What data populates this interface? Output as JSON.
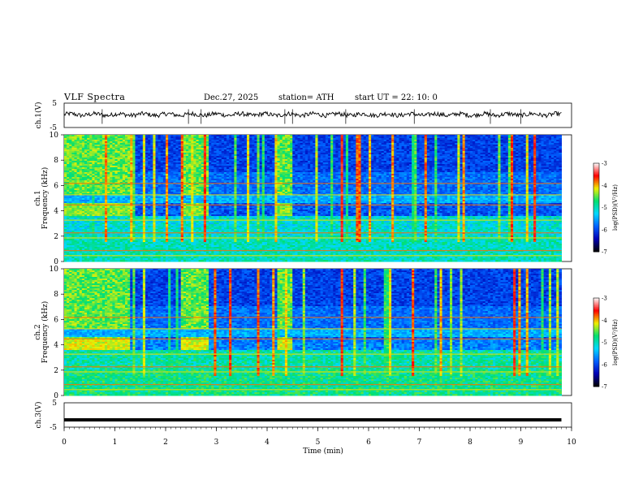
{
  "header": {
    "title": "VLF  Spectra",
    "date": "Dec.27, 2025",
    "station": "station= ATH",
    "start_ut": "start  UT  =    22: 10: 0"
  },
  "chart_data": [
    {
      "type": "line",
      "panel": "ch1-waveform",
      "ylabel": "ch.1(V)",
      "yticks": [
        "5",
        "-5"
      ],
      "ylim": [
        -5,
        5
      ],
      "xlim": [
        0,
        10
      ]
    },
    {
      "type": "heatmap",
      "panel": "ch1-spectrogram",
      "ylabel": "ch.1\nFrequency  (kHz)",
      "ylabel_line1": "ch.1",
      "ylabel_line2": "Frequency  (kHz)",
      "yticks": [
        "0",
        "2",
        "4",
        "6",
        "8",
        "10"
      ],
      "ylim": [
        0,
        10
      ],
      "xlim": [
        0,
        9.8
      ],
      "colorbar": {
        "label": "log(PSD)(V²/Hz)",
        "ticks": [
          "-3",
          "-4",
          "-5",
          "-6",
          "-7"
        ],
        "range": [
          -7,
          -3
        ],
        "colors": [
          "#000000",
          "#0000b4",
          "#0060ff",
          "#00d8ff",
          "#00e070",
          "#f0f000",
          "#ff0000",
          "#ffffff"
        ]
      }
    },
    {
      "type": "heatmap",
      "panel": "ch2-spectrogram",
      "ylabel_line1": "ch.2",
      "ylabel_line2": "Frequency  (kHz)",
      "yticks": [
        "0",
        "2",
        "4",
        "6",
        "8",
        "10"
      ],
      "ylim": [
        0,
        10
      ],
      "xlim": [
        0,
        9.8
      ],
      "colorbar": {
        "label": "log(PSD)(V²/Hz)",
        "ticks": [
          "-3",
          "-4",
          "-5",
          "-6",
          "-7"
        ],
        "range": [
          -7,
          -3
        ]
      }
    },
    {
      "type": "line",
      "panel": "ch3-waveform",
      "ylabel": "ch.3(V)",
      "yticks": [
        "5",
        "-5"
      ],
      "ylim": [
        -5,
        5
      ],
      "value": -2,
      "xlim": [
        0,
        10
      ]
    }
  ],
  "xaxis": {
    "label": "Time  (min)",
    "ticks": [
      "0",
      "1",
      "2",
      "3",
      "4",
      "5",
      "6",
      "7",
      "8",
      "9",
      "10"
    ],
    "range": [
      0,
      10
    ]
  }
}
